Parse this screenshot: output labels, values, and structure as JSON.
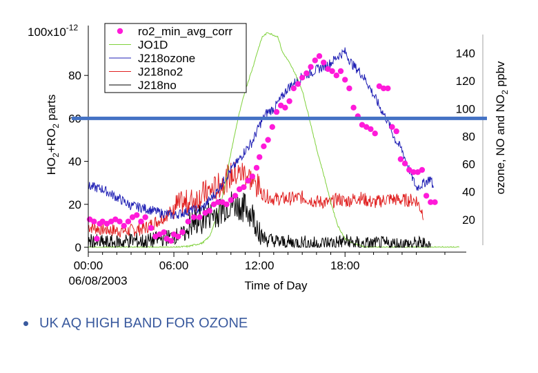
{
  "chart_data": {
    "type": "line",
    "xlabel": "Time of Day",
    "date_label": "06/08/2003",
    "x_ticks": [
      "00:00",
      "06:00",
      "12:00",
      "18:00"
    ],
    "xlim_hours": [
      0,
      26.5
    ],
    "left_axis": {
      "label_parts": [
        "HO",
        "2",
        "+RO",
        "2",
        " parts"
      ],
      "scale_label_base": "100x10",
      "scale_label_exp": "-12",
      "ticks": [
        "0",
        "20",
        "40",
        "60",
        "80"
      ],
      "ylim": [
        0,
        100
      ]
    },
    "right_axis": {
      "label_parts": [
        "ozone, NO and NO",
        "2",
        " ppbv"
      ],
      "ticks": [
        "20",
        "40",
        "60",
        "80",
        "100",
        "120",
        "140"
      ],
      "ylim": [
        0,
        155
      ]
    },
    "highlight_line": {
      "y_left": 60,
      "color": "#4472c4"
    },
    "legend": [
      {
        "name": "ro2_min_avg_corr",
        "color": "#ff1ad9",
        "style": "dot"
      },
      {
        "name": "JO1D",
        "color": "#7fd13b",
        "style": "line"
      },
      {
        "name": "J218ozone",
        "color": "#1f1fb4",
        "style": "line"
      },
      {
        "name": "J218no2",
        "color": "#e02020",
        "style": "line"
      },
      {
        "name": "J218no",
        "color": "#000000",
        "style": "line"
      }
    ],
    "series": [
      {
        "name": "ro2_min_avg_corr",
        "axis": "left",
        "kind": "scatter",
        "points": [
          [
            0.1,
            13
          ],
          [
            0.4,
            12
          ],
          [
            0.6,
            4
          ],
          [
            0.8,
            11
          ],
          [
            1.0,
            12
          ],
          [
            1.3,
            11
          ],
          [
            1.6,
            12
          ],
          [
            1.9,
            13
          ],
          [
            2.2,
            12
          ],
          [
            2.5,
            10
          ],
          [
            2.8,
            12
          ],
          [
            3.1,
            14
          ],
          [
            3.4,
            15
          ],
          [
            3.7,
            12
          ],
          [
            4.0,
            14
          ],
          [
            4.4,
            9
          ],
          [
            4.7,
            5
          ],
          [
            5.0,
            6
          ],
          [
            5.3,
            7
          ],
          [
            5.5,
            4
          ],
          [
            5.8,
            3
          ],
          [
            6.0,
            6
          ],
          [
            6.3,
            5
          ],
          [
            6.6,
            7
          ],
          [
            7.0,
            12
          ],
          [
            7.4,
            14
          ],
          [
            7.8,
            14
          ],
          [
            8.2,
            16
          ],
          [
            8.5,
            17
          ],
          [
            8.8,
            20
          ],
          [
            9.1,
            21
          ],
          [
            9.4,
            21
          ],
          [
            9.7,
            20
          ],
          [
            10.0,
            22
          ],
          [
            10.3,
            24
          ],
          [
            10.6,
            27
          ],
          [
            10.9,
            28
          ],
          [
            11.2,
            31
          ],
          [
            11.5,
            33
          ],
          [
            11.8,
            37
          ],
          [
            12.0,
            42
          ],
          [
            12.3,
            47
          ],
          [
            12.6,
            50
          ],
          [
            12.9,
            56
          ],
          [
            13.2,
            63
          ],
          [
            13.5,
            66
          ],
          [
            13.8,
            65
          ],
          [
            14.1,
            68
          ],
          [
            14.4,
            74
          ],
          [
            14.7,
            76
          ],
          [
            15.0,
            79
          ],
          [
            15.3,
            81
          ],
          [
            15.6,
            84
          ],
          [
            15.9,
            87
          ],
          [
            16.2,
            89
          ],
          [
            16.5,
            86
          ],
          [
            16.8,
            83
          ],
          [
            17.1,
            82
          ],
          [
            17.4,
            80
          ],
          [
            17.7,
            82
          ],
          [
            18.0,
            78
          ],
          [
            18.3,
            74
          ],
          [
            18.6,
            65
          ],
          [
            18.9,
            61
          ],
          [
            19.2,
            57
          ],
          [
            19.5,
            56
          ],
          [
            19.8,
            55
          ],
          [
            20.1,
            53
          ],
          [
            20.4,
            75
          ],
          [
            20.7,
            74
          ],
          [
            21.0,
            74
          ],
          [
            21.3,
            56
          ],
          [
            21.6,
            54
          ],
          [
            21.9,
            41
          ],
          [
            22.2,
            39
          ],
          [
            22.5,
            36
          ],
          [
            22.8,
            35
          ],
          [
            23.1,
            35
          ],
          [
            23.4,
            36
          ],
          [
            23.7,
            24
          ],
          [
            24.0,
            21
          ],
          [
            24.3,
            21
          ]
        ]
      },
      {
        "name": "JO1D",
        "axis": "left",
        "kind": "line",
        "points": [
          [
            0,
            0
          ],
          [
            6,
            0
          ],
          [
            7,
            0.4
          ],
          [
            8,
            2
          ],
          [
            8.5,
            5
          ],
          [
            9,
            14
          ],
          [
            9.5,
            26
          ],
          [
            10,
            44
          ],
          [
            10.5,
            60
          ],
          [
            11,
            73
          ],
          [
            11.5,
            83
          ],
          [
            11.9,
            92
          ],
          [
            12.2,
            98
          ],
          [
            12.6,
            100
          ],
          [
            12.9,
            99
          ],
          [
            13.3,
            98
          ],
          [
            13.6,
            91
          ],
          [
            14,
            87
          ],
          [
            14.5,
            81
          ],
          [
            15,
            73
          ],
          [
            15.5,
            60
          ],
          [
            16,
            46
          ],
          [
            16.5,
            34
          ],
          [
            17,
            21
          ],
          [
            17.5,
            10
          ],
          [
            18,
            4
          ],
          [
            18.5,
            2
          ],
          [
            19,
            1
          ],
          [
            19.5,
            0
          ],
          [
            26,
            0
          ]
        ]
      },
      {
        "name": "J218ozone",
        "axis": "right",
        "kind": "line",
        "points": [
          [
            0,
            44
          ],
          [
            1,
            42
          ],
          [
            2,
            36
          ],
          [
            3,
            30
          ],
          [
            4,
            28
          ],
          [
            5,
            25
          ],
          [
            6,
            23
          ],
          [
            7,
            26
          ],
          [
            8,
            28
          ],
          [
            9,
            40
          ],
          [
            10,
            56
          ],
          [
            10.5,
            62
          ],
          [
            11,
            70
          ],
          [
            11.5,
            76
          ],
          [
            12,
            88
          ],
          [
            12.5,
            97
          ],
          [
            13,
            100
          ],
          [
            13.5,
            107
          ],
          [
            14,
            115
          ],
          [
            15,
            123
          ],
          [
            16,
            128
          ],
          [
            17,
            133
          ],
          [
            17.5,
            138
          ],
          [
            18,
            141
          ],
          [
            18.5,
            132
          ],
          [
            19,
            127
          ],
          [
            19.5,
            120
          ],
          [
            20,
            110
          ],
          [
            20.5,
            100
          ],
          [
            21,
            91
          ],
          [
            21.5,
            78
          ],
          [
            22,
            70
          ],
          [
            22.5,
            56
          ],
          [
            23,
            43
          ],
          [
            23.5,
            46
          ],
          [
            24,
            50
          ],
          [
            24.2,
            42
          ]
        ]
      },
      {
        "name": "J218no2",
        "axis": "right",
        "kind": "line",
        "points": [
          [
            0,
            15
          ],
          [
            1,
            13
          ],
          [
            2,
            12
          ],
          [
            3,
            12
          ],
          [
            4,
            14
          ],
          [
            5,
            20
          ],
          [
            6,
            27
          ],
          [
            7,
            30
          ],
          [
            8,
            36
          ],
          [
            9,
            41
          ],
          [
            10,
            50
          ],
          [
            11,
            52
          ],
          [
            12,
            40
          ],
          [
            12.5,
            37
          ],
          [
            13,
            35
          ],
          [
            14,
            35
          ],
          [
            15,
            36
          ],
          [
            16,
            33
          ],
          [
            17,
            32
          ],
          [
            17.5,
            35
          ],
          [
            18,
            33
          ],
          [
            19,
            36
          ],
          [
            20,
            32
          ],
          [
            21,
            35
          ],
          [
            22,
            34
          ],
          [
            23,
            34
          ],
          [
            23.5,
            24
          ]
        ]
      },
      {
        "name": "J218no",
        "axis": "right",
        "kind": "line",
        "points": [
          [
            0,
            4
          ],
          [
            1,
            3
          ],
          [
            2,
            3
          ],
          [
            3,
            5
          ],
          [
            4,
            4
          ],
          [
            5,
            6
          ],
          [
            6,
            8
          ],
          [
            7,
            10
          ],
          [
            8,
            16
          ],
          [
            9,
            20
          ],
          [
            10,
            26
          ],
          [
            11,
            24
          ],
          [
            11.5,
            18
          ],
          [
            12,
            8
          ],
          [
            13,
            4
          ],
          [
            14,
            3
          ],
          [
            15,
            3
          ],
          [
            16,
            2
          ],
          [
            17,
            3
          ],
          [
            18,
            4
          ],
          [
            19,
            2
          ],
          [
            20,
            2
          ],
          [
            21,
            2
          ],
          [
            22,
            2
          ],
          [
            23,
            2
          ],
          [
            24,
            2
          ]
        ]
      }
    ]
  },
  "caption": "UK AQ HIGH BAND FOR OZONE"
}
